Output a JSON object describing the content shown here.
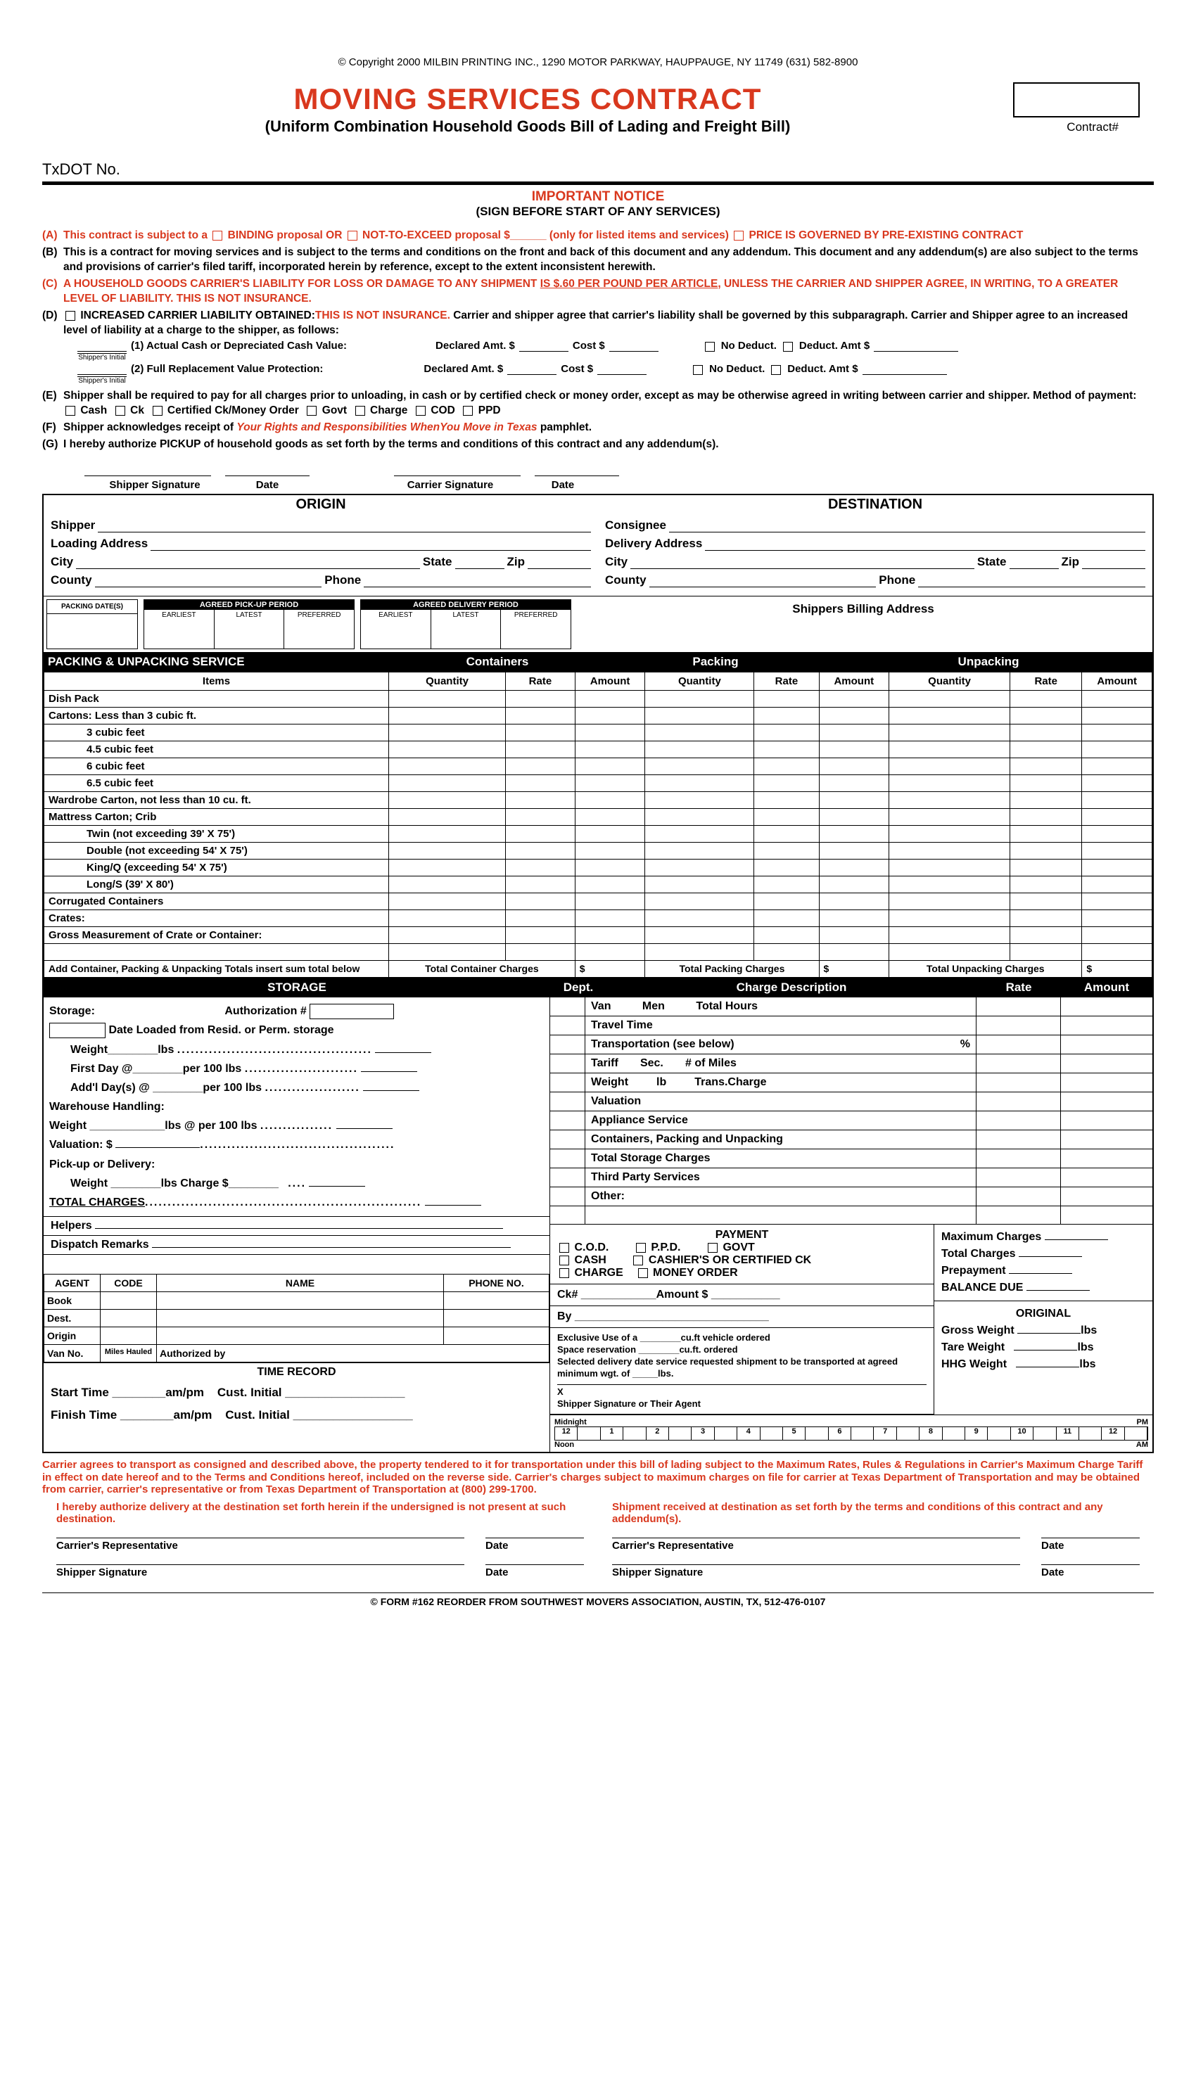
{
  "copyright": "© Copyright 2000 MILBIN PRINTING INC., 1290 MOTOR PARKWAY, HAUPPAUGE, NY 11749 (631) 582-8900",
  "title": "MOVING SERVICES CONTRACT",
  "subtitle": "(Uniform Combination Household Goods Bill of Lading and Freight Bill)",
  "contract_label": "Contract#",
  "txdot": "TxDOT No.",
  "important": "IMPORTANT NOTICE",
  "sign_before": "(SIGN BEFORE START OF ANY SERVICES)",
  "notice_a": "This contract is subject to a",
  "notice_a2": "BINDING proposal OR",
  "notice_a3": "NOT-TO-EXCEED proposal $______ (only for listed items and services)",
  "notice_a4": "PRICE IS GOVERNED BY PRE-EXISTING CONTRACT",
  "notice_b": "This is a contract for moving services and is subject to the terms and conditions on the front and back of this document and any addendum. This document and any addendum(s) are also subject to the terms and provisions of carrier's filed tariff, incorporated herein by reference, except to the extent inconsistent herewith.",
  "notice_c1": "A HOUSEHOLD GOODS CARRIER'S LIABILITY FOR LOSS OR DAMAGE TO ANY SHIPMENT ",
  "notice_c2": "IS $.60 PER POUND PER ARTICLE,",
  "notice_c3": " UNLESS THE CARRIER AND SHIPPER AGREE, IN WRITING, TO A GREATER LEVEL OF LIABILITY. THIS IS NOT INSURANCE.",
  "notice_d1": "INCREASED CARRIER LIABILITY OBTAINED:",
  "notice_d2": "THIS IS NOT INSURANCE.",
  "notice_d3": " Carrier and shipper agree that carrier's liability shall be governed by this subparagraph. Carrier and Shipper agree to an increased level of liability at a charge to the shipper, as follows:",
  "liab1": "(1) Actual Cash or Depreciated Cash Value:",
  "liab2": "(2) Full Replacement Value Protection:",
  "declared": "Declared Amt. $",
  "cost": "Cost $",
  "nodeduct": "No Deduct.",
  "deductamt": "Deduct. Amt $",
  "ship_init": "Shipper's Initial",
  "notice_e": "Shipper shall be required to pay for all charges prior to unloading, in cash or by certified check or money order, except as may be otherwise agreed in writing between carrier and shipper.  Method of payment:",
  "pay_cash": "Cash",
  "pay_ck": "Ck",
  "pay_cert": "Certified Ck/Money Order",
  "pay_govt": "Govt",
  "pay_charge": "Charge",
  "pay_cod": "COD",
  "pay_ppd": "PPD",
  "notice_f1": "Shipper acknowledges receipt of ",
  "notice_f2": "Your Rights and Responsibilities WhenYou Move in Texas",
  "notice_f3": " pamphlet.",
  "notice_g": "I hereby authorize PICKUP of household goods as set forth by the terms and conditions of this contract and any addendum(s).",
  "sig_shipper": "Shipper Signature",
  "sig_date": "Date",
  "sig_carrier": "Carrier Signature",
  "origin": "ORIGIN",
  "destination": "DESTINATION",
  "shipper": "Shipper",
  "consignee": "Consignee",
  "loading": "Loading Address",
  "delivery": "Delivery Address",
  "city": "City",
  "state": "State",
  "zip": "Zip",
  "county": "County",
  "phone": "Phone",
  "packing_dates": "PACKING DATE(S)",
  "agreed_pickup": "AGREED PICK-UP PERIOD",
  "agreed_delivery": "AGREED DELIVERY PERIOD",
  "earliest": "EARLIEST",
  "latest": "LATEST",
  "preferred": "PREFERRED",
  "billing": "Shippers Billing Address",
  "pack_service": "PACKING & UNPACKING SERVICE",
  "containers": "Containers",
  "packing": "Packing",
  "unpacking": "Unpacking",
  "items_hdr": "Items",
  "qty": "Quantity",
  "rate": "Rate",
  "amount": "Amount",
  "items": [
    "Dish Pack",
    "Cartons: Less than 3 cubic ft.",
    "3 cubic feet",
    "4.5 cubic feet",
    "6 cubic feet",
    "6.5 cubic feet",
    "Wardrobe Carton, not less than 10 cu. ft.",
    "Mattress Carton; Crib",
    "Twin (not exceeding 39' X 75')",
    "Double (not exceeding 54' X 75')",
    "King/Q (exceeding  54' X 75')",
    "Long/S (39' X 80')",
    "Corrugated Containers",
    "Crates:",
    "Gross Measurement of Crate or Container:"
  ],
  "item_indent": [
    false,
    false,
    true,
    true,
    true,
    true,
    false,
    false,
    true,
    true,
    true,
    true,
    false,
    false,
    false
  ],
  "add_totals": "Add Container, Packing & Unpacking Totals insert sum total below",
  "tot_container": "Total Container Charges",
  "tot_packing": "Total Packing Charges",
  "tot_unpacking": "Total Unpacking Charges",
  "storage": "STORAGE",
  "dept": "Dept.",
  "charge_desc": "Charge Description",
  "storage_label": "Storage:",
  "auth_num": "Authorization #",
  "date_loaded": "Date Loaded from Resid. or Perm. storage",
  "weight_lbs": "Weight________lbs",
  "first_day": "First Day @________per 100 lbs",
  "addl_day": "Add'l Day(s) @ ________per 100 lbs",
  "warehouse": "Warehouse Handling:",
  "wh_weight": "Weight ____________lbs @ per 100 lbs",
  "valuation": "Valuation:  $",
  "pickup_del": "Pick-up or Delivery:",
  "pd_weight": "Weight ________lbs   Charge $________",
  "total_charges_dots": "TOTAL CHARGES",
  "helpers": "Helpers",
  "dispatch": "Dispatch Remarks",
  "van": "Van",
  "men": "Men",
  "total_hours": "Total Hours",
  "travel_time": "Travel Time",
  "transportation": "Transportation (see below)",
  "tariff": "Tariff",
  "sec": "Sec.",
  "num_miles": "# of Miles",
  "weight_lb": "Weight",
  "lb": "lb",
  "trans_charge": "Trans.Charge",
  "valuation2": "Valuation",
  "appliance": "Appliance Service",
  "cpu": "Containers, Packing and Unpacking",
  "tot_storage": "Total Storage Charges",
  "third_party": "Third Party Services",
  "other": "Other:",
  "payment": "PAYMENT",
  "cod": "C.O.D.",
  "ppd": "P.P.D.",
  "govt": "GOVT",
  "cash": "CASH",
  "cashiers": "CASHIER'S OR CERTIFIED CK",
  "charge": "CHARGE",
  "money_order": "MONEY ORDER",
  "cknum": "Ck#",
  "amt_dollar": "Amount $",
  "by": "By",
  "exclusive": "Exclusive Use of a ________cu.ft vehicle ordered",
  "space_res": "Space reservation ________cu.ft. ordered",
  "selected": "Selected delivery date service requested shipment to be transported at agreed minimum wgt. of _____lbs.",
  "ship_sig_agent": "Shipper Signature or Their Agent",
  "max_charges": "Maximum Charges",
  "total_charges": "Total Charges",
  "prepayment": "Prepayment",
  "balance_due": "BALANCE DUE",
  "original": "ORIGINAL",
  "gross_wt": "Gross Weight",
  "tare_wt": "Tare Weight",
  "hhg_wt": "HHG Weight",
  "lbs": "lbs",
  "agent": "AGENT",
  "code": "CODE",
  "name": "NAME",
  "phone_no": "PHONE NO.",
  "book": "Book",
  "dest": "Dest.",
  "origin2": "Origin",
  "van_no": "Van No.",
  "miles_hauled": "Miles Hauled",
  "auth_by": "Authorized by",
  "time_record": "TIME RECORD",
  "start_time": "Start Time",
  "finish_time": "Finish Time",
  "ampm": "am/pm",
  "cust_init": "Cust. Initial",
  "midnight": "Midnight",
  "noon": "Noon",
  "pm": "PM",
  "am": "AM",
  "final1": "Carrier agrees to transport as consigned and described above, the property tendered to it for transportation under this bill of lading subject to the Maximum Rates, Rules & Regulations in Carrier's Maximum Charge Tariff in effect on date hereof and to the Terms and Conditions hereof, included on the reverse side. Carrier's charges subject to maximum charges on file for carrier at Texas Department of Transportation and may be obtained from carrier, carrier's representative or from Texas Department of Transportation at (800) 299-1700.",
  "auth_del": "I hereby authorize delivery at the destination set forth herein if the undersigned is not present at such destination.",
  "ship_rec": "Shipment received at destination as set forth by the terms and conditions of this contract and any addendum(s).",
  "carrier_rep": "Carrier's Representative",
  "shipper_sig": "Shipper Signature",
  "footer": "© FORM #162 REORDER FROM SOUTHWEST MOVERS ASSOCIATION,  AUSTIN, TX, 512-476-0107"
}
